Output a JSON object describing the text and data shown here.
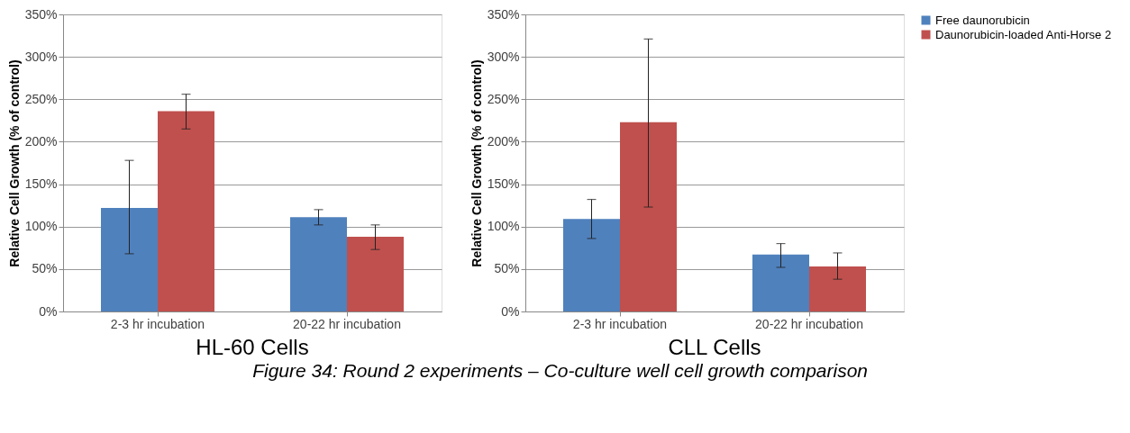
{
  "chart_data": [
    {
      "type": "bar",
      "title": "HL-60 Cells",
      "ylabel": "Relative Cell Growth (% of control)",
      "categories": [
        "2-3 hr incubation",
        "20-22 hr incubation"
      ],
      "series": [
        {
          "color": "#4f81bd",
          "values": [
            122,
            111
          ],
          "errors": [
            [
              68,
              178
            ],
            [
              102,
              120
            ]
          ]
        },
        {
          "color": "#c0504d",
          "values": [
            236,
            88
          ],
          "errors": [
            [
              215,
              256
            ],
            [
              73,
              102
            ]
          ]
        }
      ],
      "ylim": [
        0,
        350
      ],
      "yticks": [
        {
          "value": 0,
          "label": "0%"
        },
        {
          "value": 50,
          "label": "50%"
        },
        {
          "value": 100,
          "label": "100%"
        },
        {
          "value": 150,
          "label": "150%"
        },
        {
          "value": 200,
          "label": "200%"
        },
        {
          "value": 250,
          "label": "250%"
        },
        {
          "value": 300,
          "label": "300%"
        },
        {
          "value": 350,
          "label": "350%"
        }
      ],
      "grid": "y",
      "legend": false
    },
    {
      "type": "bar",
      "title": "CLL Cells",
      "ylabel": "Relative Cell Growth (% of control)",
      "categories": [
        "2-3 hr incubation",
        "20-22 hr incubation"
      ],
      "series": [
        {
          "name": "Free daunorubicin",
          "color": "#4f81bd",
          "values": [
            109,
            67
          ],
          "errors": [
            [
              86,
              132
            ],
            [
              52,
              80
            ]
          ]
        },
        {
          "name": "Daunorubicin-loaded Anti-Horse 2",
          "color": "#c0504d",
          "values": [
            223,
            53
          ],
          "errors": [
            [
              123,
              321
            ],
            [
              38,
              69
            ]
          ]
        }
      ],
      "ylim": [
        0,
        350
      ],
      "yticks": [
        {
          "value": 0,
          "label": "0%"
        },
        {
          "value": 50,
          "label": "50%"
        },
        {
          "value": 100,
          "label": "100%"
        },
        {
          "value": 150,
          "label": "150%"
        },
        {
          "value": 200,
          "label": "200%"
        },
        {
          "value": 250,
          "label": "250%"
        },
        {
          "value": 300,
          "label": "300%"
        },
        {
          "value": 350,
          "label": "350%"
        }
      ],
      "grid": "y",
      "legend": "right",
      "annotations": [
        "Figure 34: Round 2 experiments – Co-culture well  cell growth comparison"
      ]
    }
  ]
}
